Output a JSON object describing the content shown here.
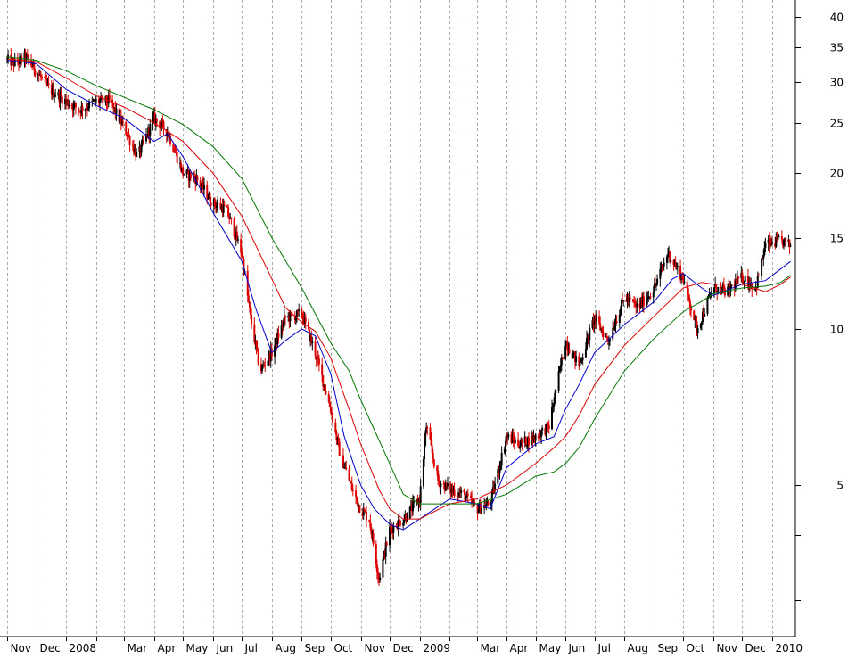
{
  "chart_data": {
    "type": "line",
    "title": "",
    "xlabel": "",
    "ylabel": "",
    "y_scale": "log",
    "ylim": [
      2.3,
      45
    ],
    "x_range": [
      "2007-11-01",
      "2010-01-20"
    ],
    "grid": {
      "vertical": true,
      "horizontal": false,
      "style": "dotted"
    },
    "legend": "none",
    "y_axis_side": "right",
    "y_ticks": [
      {
        "value": 40,
        "label": "40"
      },
      {
        "value": 35,
        "label": "35"
      },
      {
        "value": 30,
        "label": "30"
      },
      {
        "value": 25,
        "label": "25"
      },
      {
        "value": 20,
        "label": "20"
      },
      {
        "value": 15,
        "label": "15"
      },
      {
        "value": 10,
        "label": "10"
      },
      {
        "value": 5,
        "label": "5"
      }
    ],
    "x_ticks": [
      {
        "date": "2007-11-01",
        "label": "Nov"
      },
      {
        "date": "2007-12-01",
        "label": "Dec"
      },
      {
        "date": "2008-01-01",
        "label": "2008"
      },
      {
        "date": "2008-02-01",
        "label": ""
      },
      {
        "date": "2008-03-01",
        "label": "Mar"
      },
      {
        "date": "2008-04-01",
        "label": "Apr"
      },
      {
        "date": "2008-05-01",
        "label": "May"
      },
      {
        "date": "2008-06-01",
        "label": "Jun"
      },
      {
        "date": "2008-07-01",
        "label": "Jul"
      },
      {
        "date": "2008-08-01",
        "label": "Aug"
      },
      {
        "date": "2008-09-01",
        "label": "Sep"
      },
      {
        "date": "2008-10-01",
        "label": "Oct"
      },
      {
        "date": "2008-11-01",
        "label": "Nov"
      },
      {
        "date": "2008-12-01",
        "label": "Dec"
      },
      {
        "date": "2009-01-01",
        "label": "2009"
      },
      {
        "date": "2009-02-01",
        "label": ""
      },
      {
        "date": "2009-03-01",
        "label": "Mar"
      },
      {
        "date": "2009-04-01",
        "label": "Apr"
      },
      {
        "date": "2009-05-01",
        "label": "May"
      },
      {
        "date": "2009-06-01",
        "label": "Jun"
      },
      {
        "date": "2009-07-01",
        "label": "Jul"
      },
      {
        "date": "2009-08-01",
        "label": "Aug"
      },
      {
        "date": "2009-09-01",
        "label": "Sep"
      },
      {
        "date": "2009-10-01",
        "label": "Oct"
      },
      {
        "date": "2009-11-01",
        "label": "Nov"
      },
      {
        "date": "2009-12-01",
        "label": "Dec"
      },
      {
        "date": "2010-01-01",
        "label": "2010"
      }
    ],
    "colors": {
      "up": "#000000",
      "down": "#dd0000",
      "ma_short": "#0000cc",
      "ma_mid": "#dd0000",
      "ma_long": "#007700"
    },
    "price_path": [
      [
        "2007-11-01",
        33.0
      ],
      [
        "2007-11-10",
        32.5
      ],
      [
        "2007-11-20",
        33.5
      ],
      [
        "2007-12-01",
        31.5
      ],
      [
        "2007-12-15",
        29.0
      ],
      [
        "2008-01-01",
        27.5
      ],
      [
        "2008-01-15",
        26.5
      ],
      [
        "2008-02-01",
        27.5
      ],
      [
        "2008-02-15",
        27.5
      ],
      [
        "2008-03-01",
        24.5
      ],
      [
        "2008-03-15",
        21.5
      ],
      [
        "2008-04-01",
        25.5
      ],
      [
        "2008-04-15",
        24.0
      ],
      [
        "2008-05-01",
        20.0
      ],
      [
        "2008-05-15",
        19.5
      ],
      [
        "2008-06-01",
        17.5
      ],
      [
        "2008-06-15",
        17.0
      ],
      [
        "2008-07-01",
        14.0
      ],
      [
        "2008-07-10",
        10.5
      ],
      [
        "2008-07-20",
        8.3
      ],
      [
        "2008-08-01",
        9.0
      ],
      [
        "2008-08-15",
        10.5
      ],
      [
        "2008-09-01",
        10.7
      ],
      [
        "2008-09-15",
        9.0
      ],
      [
        "2008-10-01",
        7.0
      ],
      [
        "2008-10-10",
        5.8
      ],
      [
        "2008-10-25",
        4.8
      ],
      [
        "2008-11-01",
        4.5
      ],
      [
        "2008-11-10",
        4.3
      ],
      [
        "2008-11-20",
        3.3
      ],
      [
        "2008-12-01",
        4.1
      ],
      [
        "2008-12-15",
        4.3
      ],
      [
        "2009-01-01",
        4.7
      ],
      [
        "2009-01-08",
        6.5
      ],
      [
        "2009-01-20",
        5.1
      ],
      [
        "2009-02-01",
        4.9
      ],
      [
        "2009-02-15",
        4.8
      ],
      [
        "2009-03-01",
        4.5
      ],
      [
        "2009-03-15",
        4.6
      ],
      [
        "2009-04-01",
        6.2
      ],
      [
        "2009-04-15",
        6.0
      ],
      [
        "2009-05-01",
        6.2
      ],
      [
        "2009-05-15",
        6.5
      ],
      [
        "2009-06-01",
        9.5
      ],
      [
        "2009-06-15",
        8.5
      ],
      [
        "2009-07-01",
        10.5
      ],
      [
        "2009-07-15",
        9.5
      ],
      [
        "2009-08-01",
        11.5
      ],
      [
        "2009-08-15",
        11.0
      ],
      [
        "2009-09-01",
        12.0
      ],
      [
        "2009-09-15",
        14.0
      ],
      [
        "2009-10-01",
        12.5
      ],
      [
        "2009-10-15",
        10.0
      ],
      [
        "2009-11-01",
        12.0
      ],
      [
        "2009-11-15",
        11.8
      ],
      [
        "2009-12-01",
        12.6
      ],
      [
        "2009-12-15",
        12.0
      ],
      [
        "2009-12-25",
        14.5
      ],
      [
        "2010-01-10",
        14.8
      ],
      [
        "2010-01-20",
        14.5
      ]
    ],
    "series": [
      {
        "values": [
          [
            "2007-11-01",
            33.0
          ],
          [
            "2007-12-01",
            32.5
          ],
          [
            "2008-01-01",
            29.0
          ],
          [
            "2008-02-01",
            27.0
          ],
          [
            "2008-03-01",
            25.5
          ],
          [
            "2008-04-01",
            23.0
          ],
          [
            "2008-04-15",
            23.8
          ],
          [
            "2008-05-01",
            21.5
          ],
          [
            "2008-06-01",
            16.8
          ],
          [
            "2008-07-01",
            13.5
          ],
          [
            "2008-07-15",
            11.0
          ],
          [
            "2008-08-01",
            9.0
          ],
          [
            "2008-08-15",
            9.5
          ],
          [
            "2008-09-01",
            10.0
          ],
          [
            "2008-09-15",
            9.7
          ],
          [
            "2008-10-01",
            8.2
          ],
          [
            "2008-10-15",
            6.2
          ],
          [
            "2008-11-01",
            5.0
          ],
          [
            "2008-11-15",
            4.5
          ],
          [
            "2008-12-01",
            4.2
          ],
          [
            "2008-12-15",
            4.1
          ],
          [
            "2009-01-01",
            4.3
          ],
          [
            "2009-02-01",
            4.7
          ],
          [
            "2009-03-01",
            4.6
          ],
          [
            "2009-03-15",
            4.5
          ],
          [
            "2009-04-01",
            5.4
          ],
          [
            "2009-05-01",
            6.0
          ],
          [
            "2009-05-20",
            6.2
          ],
          [
            "2009-06-01",
            7.0
          ],
          [
            "2009-06-15",
            7.8
          ],
          [
            "2009-07-01",
            9.0
          ],
          [
            "2009-08-01",
            10.2
          ],
          [
            "2009-09-01",
            11.3
          ],
          [
            "2009-09-20",
            12.5
          ],
          [
            "2009-10-01",
            12.8
          ],
          [
            "2009-10-20",
            12.0
          ],
          [
            "2009-11-01",
            11.6
          ],
          [
            "2009-12-01",
            12.2
          ],
          [
            "2009-12-25",
            12.4
          ],
          [
            "2010-01-20",
            13.5
          ]
        ]
      },
      {
        "values": [
          [
            "2007-11-01",
            33.2
          ],
          [
            "2007-12-01",
            32.8
          ],
          [
            "2008-01-01",
            30.5
          ],
          [
            "2008-02-01",
            28.2
          ],
          [
            "2008-03-01",
            26.8
          ],
          [
            "2008-04-01",
            25.0
          ],
          [
            "2008-05-01",
            23.0
          ],
          [
            "2008-06-01",
            20.0
          ],
          [
            "2008-07-01",
            16.5
          ],
          [
            "2008-08-01",
            12.5
          ],
          [
            "2008-08-15",
            11.0
          ],
          [
            "2008-09-01",
            10.3
          ],
          [
            "2008-09-15",
            9.9
          ],
          [
            "2008-10-01",
            8.8
          ],
          [
            "2008-10-20",
            7.0
          ],
          [
            "2008-11-01",
            6.0
          ],
          [
            "2008-11-20",
            4.9
          ],
          [
            "2008-12-01",
            4.5
          ],
          [
            "2008-12-15",
            4.3
          ],
          [
            "2009-01-01",
            4.3
          ],
          [
            "2009-02-01",
            4.6
          ],
          [
            "2009-03-01",
            4.7
          ],
          [
            "2009-04-01",
            5.0
          ],
          [
            "2009-05-01",
            5.5
          ],
          [
            "2009-05-20",
            5.9
          ],
          [
            "2009-06-01",
            6.2
          ],
          [
            "2009-06-15",
            6.8
          ],
          [
            "2009-07-01",
            7.8
          ],
          [
            "2009-08-01",
            9.3
          ],
          [
            "2009-09-01",
            10.6
          ],
          [
            "2009-10-01",
            12.0
          ],
          [
            "2009-10-20",
            12.3
          ],
          [
            "2009-11-01",
            12.2
          ],
          [
            "2009-12-01",
            12.2
          ],
          [
            "2009-12-25",
            11.8
          ],
          [
            "2010-01-10",
            12.2
          ],
          [
            "2010-01-20",
            12.6
          ]
        ]
      },
      {
        "values": [
          [
            "2007-11-01",
            33.5
          ],
          [
            "2007-12-01",
            33.0
          ],
          [
            "2008-01-01",
            31.5
          ],
          [
            "2008-02-01",
            29.5
          ],
          [
            "2008-03-01",
            28.0
          ],
          [
            "2008-04-01",
            26.5
          ],
          [
            "2008-05-01",
            24.8
          ],
          [
            "2008-06-01",
            22.5
          ],
          [
            "2008-07-01",
            19.5
          ],
          [
            "2008-08-01",
            15.0
          ],
          [
            "2008-09-01",
            12.0
          ],
          [
            "2008-09-15",
            10.7
          ],
          [
            "2008-10-01",
            9.4
          ],
          [
            "2008-10-20",
            8.3
          ],
          [
            "2008-11-01",
            7.3
          ],
          [
            "2008-12-01",
            5.5
          ],
          [
            "2008-12-15",
            4.8
          ],
          [
            "2009-01-01",
            4.6
          ],
          [
            "2009-02-01",
            4.6
          ],
          [
            "2009-03-01",
            4.6
          ],
          [
            "2009-04-01",
            4.8
          ],
          [
            "2009-05-01",
            5.2
          ],
          [
            "2009-05-20",
            5.3
          ],
          [
            "2009-06-01",
            5.5
          ],
          [
            "2009-06-15",
            5.9
          ],
          [
            "2009-07-01",
            6.7
          ],
          [
            "2009-08-01",
            8.3
          ],
          [
            "2009-09-01",
            9.6
          ],
          [
            "2009-10-01",
            10.8
          ],
          [
            "2009-10-20",
            11.3
          ],
          [
            "2009-11-01",
            11.7
          ],
          [
            "2009-12-01",
            12.0
          ],
          [
            "2009-12-25",
            12.1
          ],
          [
            "2010-01-10",
            12.3
          ],
          [
            "2010-01-20",
            12.7
          ]
        ]
      }
    ]
  }
}
